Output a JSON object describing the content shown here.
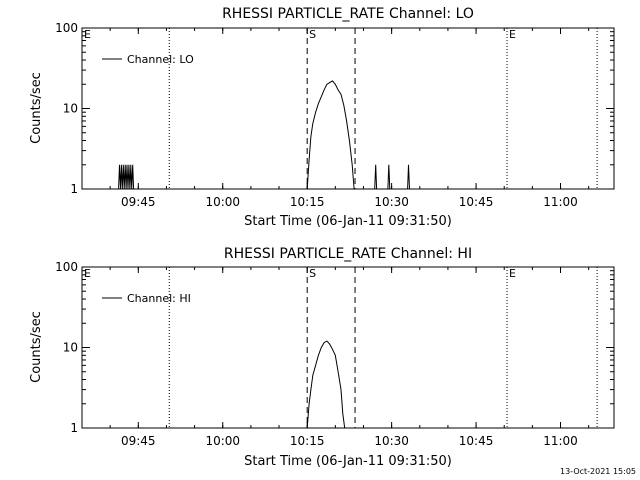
{
  "footer": {
    "timestamp": "13-Oct-2021 15:05"
  },
  "chart_data": [
    {
      "type": "line",
      "title": "RHESSI PARTICLE_RATE Channel: LO",
      "xlabel": "Start Time (06-Jan-11 09:31:50)",
      "ylabel": "Counts/sec",
      "yscale": "log",
      "ylim": [
        1,
        100
      ],
      "xlim": [
        "09:35:00",
        "11:09:30"
      ],
      "x_ticks": [
        "09:45",
        "10:00",
        "10:15",
        "10:30",
        "10:45",
        "11:00"
      ],
      "y_ticks": [
        "1",
        "10",
        "100"
      ],
      "legend": {
        "placement": "top-left",
        "entries": [
          "Channel: LO"
        ]
      },
      "series": [
        {
          "name": "Channel: LO",
          "bursts": [
            {
              "x": [
                "09:41:30",
                "09:41:40",
                "09:41:50",
                "09:42:00",
                "09:42:10",
                "09:42:20",
                "09:42:30",
                "09:42:40",
                "09:42:50",
                "09:43:00",
                "09:43:10",
                "09:43:20",
                "09:43:30",
                "09:43:40",
                "09:43:50",
                "09:44:00",
                "09:44:10",
                "09:44:20"
              ],
              "y": [
                1,
                2,
                1,
                2,
                1,
                2,
                1,
                2,
                1,
                2,
                1,
                2,
                1,
                2,
                1,
                2,
                1,
                1
              ]
            },
            {
              "x": [
                "10:15:00",
                "10:15:20",
                "10:15:40",
                "10:16:00",
                "10:16:30",
                "10:17:00",
                "10:17:30",
                "10:18:00",
                "10:18:30",
                "10:19:00",
                "10:19:30",
                "10:20:00",
                "10:20:30",
                "10:21:00",
                "10:21:30",
                "10:22:00",
                "10:22:30",
                "10:23:00",
                "10:23:20"
              ],
              "y": [
                1,
                2.3,
                4.5,
                6.5,
                9,
                11.5,
                14,
                17,
                20,
                21,
                22,
                20,
                17,
                15,
                11,
                7,
                4,
                2,
                1
              ]
            },
            {
              "x": [
                "10:27:00",
                "10:27:10",
                "10:27:20"
              ],
              "y": [
                1,
                2,
                1
              ]
            },
            {
              "x": [
                "10:29:20",
                "10:29:30",
                "10:29:40"
              ],
              "y": [
                1,
                2,
                1
              ]
            },
            {
              "x": [
                "10:32:50",
                "10:33:00",
                "10:33:10"
              ],
              "y": [
                1,
                2,
                1
              ]
            }
          ]
        }
      ],
      "markers": [
        {
          "x": "09:35:00",
          "label": "E",
          "style": "dotted"
        },
        {
          "x": "09:50:30",
          "label": "",
          "style": "dotted"
        },
        {
          "x": "10:15:00",
          "label": "S",
          "style": "dashed"
        },
        {
          "x": "10:23:30",
          "label": "",
          "style": "dashed"
        },
        {
          "x": "10:50:30",
          "label": "E",
          "style": "dotted"
        },
        {
          "x": "11:06:30",
          "label": "",
          "style": "dotted"
        }
      ]
    },
    {
      "type": "line",
      "title": "RHESSI PARTICLE_RATE Channel: HI",
      "xlabel": "Start Time (06-Jan-11 09:31:50)",
      "ylabel": "Counts/sec",
      "yscale": "log",
      "ylim": [
        1,
        100
      ],
      "xlim": [
        "09:35:00",
        "11:09:30"
      ],
      "x_ticks": [
        "09:45",
        "10:00",
        "10:15",
        "10:30",
        "10:45",
        "11:00"
      ],
      "y_ticks": [
        "1",
        "10",
        "100"
      ],
      "legend": {
        "placement": "top-left",
        "entries": [
          "Channel: HI"
        ]
      },
      "series": [
        {
          "name": "Channel: HI",
          "bursts": [
            {
              "x": [
                "10:15:00",
                "10:15:20",
                "10:15:40",
                "10:16:00",
                "10:16:30",
                "10:17:00",
                "10:17:30",
                "10:18:00",
                "10:18:30",
                "10:19:00",
                "10:19:30",
                "10:20:00",
                "10:20:30",
                "10:21:00",
                "10:21:20",
                "10:21:40"
              ],
              "y": [
                1,
                2,
                3,
                4.5,
                6,
                8,
                10,
                11.5,
                12,
                11,
                9.5,
                8,
                5,
                3,
                1.5,
                1
              ]
            }
          ]
        }
      ],
      "markers": [
        {
          "x": "09:35:00",
          "label": "E",
          "style": "dotted"
        },
        {
          "x": "09:50:30",
          "label": "",
          "style": "dotted"
        },
        {
          "x": "10:15:00",
          "label": "S",
          "style": "dashed"
        },
        {
          "x": "10:23:30",
          "label": "",
          "style": "dashed"
        },
        {
          "x": "10:50:30",
          "label": "E",
          "style": "dotted"
        },
        {
          "x": "11:06:30",
          "label": "",
          "style": "dotted"
        }
      ]
    }
  ]
}
